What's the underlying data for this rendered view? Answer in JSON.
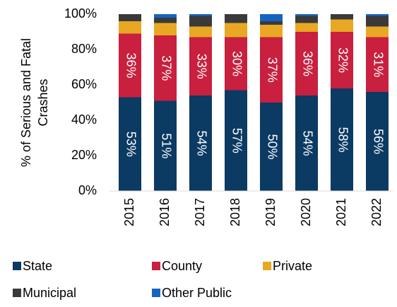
{
  "chart_data": {
    "type": "stacked_bar",
    "ylabel": [
      "% of Serious and Fatal",
      "Crashes"
    ],
    "categories": [
      "2015",
      "2016",
      "2017",
      "2018",
      "2019",
      "2020",
      "2021",
      "2022"
    ],
    "series": [
      {
        "name": "State",
        "color": "#0b3a63",
        "values": [
          53,
          51,
          54,
          57,
          50,
          54,
          58,
          56
        ],
        "value_labels": [
          "53%",
          "51%",
          "54%",
          "57%",
          "50%",
          "54%",
          "58%",
          "56%"
        ]
      },
      {
        "name": "County",
        "color": "#c8203e",
        "values": [
          36,
          37,
          33,
          30,
          37,
          36,
          32,
          31
        ],
        "value_labels": [
          "36%",
          "37%",
          "33%",
          "30%",
          "37%",
          "36%",
          "32%",
          "31%"
        ]
      },
      {
        "name": "Private",
        "color": "#e9a823",
        "values": [
          7,
          7,
          6,
          8,
          7,
          5,
          7,
          6
        ]
      },
      {
        "name": "Municipal",
        "color": "#3a3a3a",
        "values": [
          4,
          3,
          6,
          5,
          2,
          4,
          3,
          6
        ]
      },
      {
        "name": "Other Public",
        "color": "#1565c0",
        "values": [
          0,
          2,
          1,
          0,
          4,
          1,
          0,
          1
        ]
      }
    ],
    "ylim": [
      0,
      100
    ],
    "yticks": [
      {
        "value": 0,
        "label": "0%"
      },
      {
        "value": 20,
        "label": "20%"
      },
      {
        "value": 40,
        "label": "40%"
      },
      {
        "value": 60,
        "label": "60%"
      },
      {
        "value": 80,
        "label": "80%"
      },
      {
        "value": 100,
        "label": "100%"
      }
    ],
    "grid": false,
    "legend": "bottom"
  }
}
